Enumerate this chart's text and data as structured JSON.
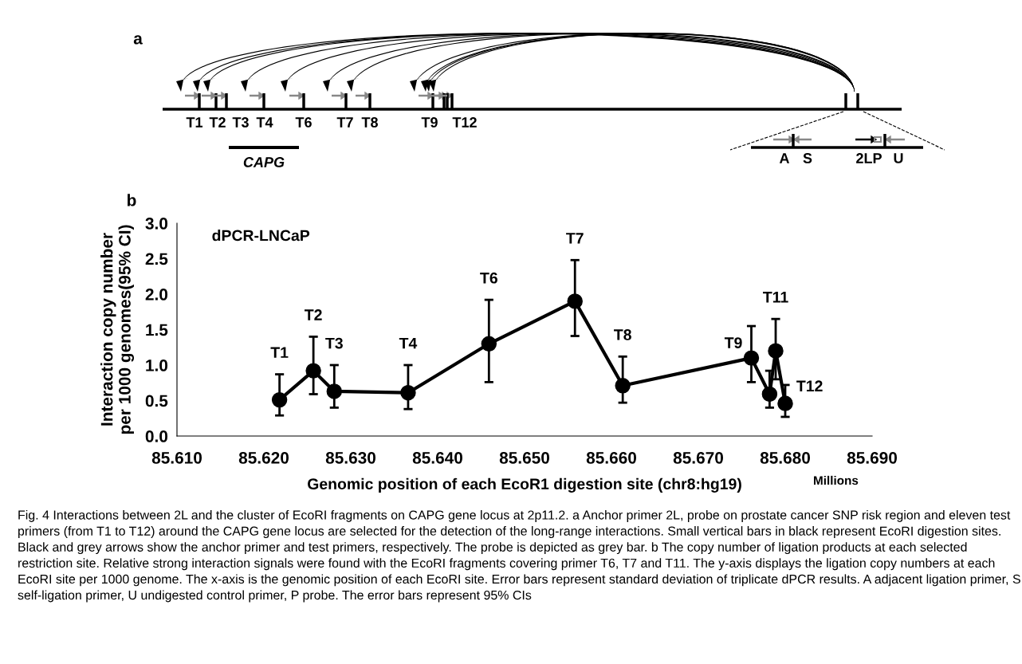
{
  "chart_data": [
    {
      "type": "other",
      "title": "a",
      "annotations": [
        "T1",
        "T2",
        "T3",
        "T4",
        "T6",
        "T7",
        "T8",
        "T9",
        "T12",
        "CAPG",
        "A",
        "S",
        "2LP",
        "U"
      ]
    },
    {
      "type": "line",
      "title": "b",
      "xlabel": "Genomic position of each EcoR1 digestion site (chr8:hg19)",
      "ylabel": "Interaction copy number\nper 1000 genomes(95% CI)",
      "x": [
        85.6218,
        85.6257,
        85.6281,
        85.6366,
        85.6459,
        85.6558,
        85.6613,
        85.6761,
        85.6782,
        85.6789,
        85.68
      ],
      "series": [
        {
          "color": "#000000",
          "values": [
            0.51,
            0.92,
            0.63,
            0.61,
            1.3,
            1.9,
            0.71,
            1.1,
            0.59,
            1.2,
            0.46
          ],
          "errors": [
            [
              0.29,
              0.87
            ],
            [
              0.59,
              1.4
            ],
            [
              0.4,
              1.0
            ],
            [
              0.38,
              1.0
            ],
            [
              0.76,
              1.92
            ],
            [
              1.41,
              2.48
            ],
            [
              0.47,
              1.12
            ],
            [
              0.76,
              1.55
            ],
            [
              0.4,
              0.92
            ],
            [
              0.8,
              1.65
            ],
            [
              0.27,
              0.72
            ]
          ]
        }
      ],
      "xlim": [
        85.61,
        85.69
      ],
      "xticks": [
        {
          "value": 85.61,
          "label": "85.610"
        },
        {
          "value": 85.62,
          "label": "85.620"
        },
        {
          "value": 85.63,
          "label": "85.630"
        },
        {
          "value": 85.64,
          "label": "85.640"
        },
        {
          "value": 85.65,
          "label": "85.650"
        },
        {
          "value": 85.66,
          "label": "85.660"
        },
        {
          "value": 85.67,
          "label": "85.670"
        },
        {
          "value": 85.68,
          "label": "85.680"
        },
        {
          "value": 85.69,
          "label": "85.690"
        }
      ],
      "ylim": [
        0,
        3
      ],
      "yticks": [
        {
          "value": 0,
          "label": "0.0"
        },
        {
          "value": 0.5,
          "label": "0.5"
        },
        {
          "value": 1,
          "label": "1.0"
        },
        {
          "value": 1.5,
          "label": "1.5"
        },
        {
          "value": 2,
          "label": "2.0"
        },
        {
          "value": 2.5,
          "label": "2.5"
        },
        {
          "value": 3,
          "label": "3.0"
        }
      ],
      "grid": false,
      "legend": false,
      "marker": "circle",
      "line_style": "solid",
      "annotations": [
        {
          "text": "T1",
          "x": 85.6218,
          "y": 0.87
        },
        {
          "text": "T2",
          "x": 85.6257,
          "y": 1.4
        },
        {
          "text": "T3",
          "x": 85.6281,
          "y": 1.0
        },
        {
          "text": "T4",
          "x": 85.6366,
          "y": 1.0
        },
        {
          "text": "T6",
          "x": 85.6459,
          "y": 1.92
        },
        {
          "text": "T7",
          "x": 85.6558,
          "y": 2.48
        },
        {
          "text": "T8",
          "x": 85.6613,
          "y": 1.12
        },
        {
          "text": "T9",
          "x": 85.6761,
          "y": 1.1
        },
        {
          "text": "T11",
          "x": 85.6789,
          "y": 1.65
        },
        {
          "text": "T12",
          "x": 85.68,
          "y": 0.46
        },
        "dPCR-LNCaP",
        "Millions",
        "Fig. 4 Interactions between 2L and the cluster of EcoRI fragments on CAPG gene locus at 2p11.2. a Anchor primer 2L, probe on prostate cancer SNP risk region and eleven test primers (from T1 to T12) around the CAPG gene locus are selected for the detection of the long-range interactions. Small vertical bars in black represent EcoRI digestion sites. Black and grey arrows show the anchor primer and test primers, respectively. The probe is depicted as grey bar. b The copy number of ligation products at each selected restriction site. Relative strong interaction signals were found with the EcoRI fragments covering primer T6, T7 and T11. The y-axis displays the ligation copy numbers at each EcoRI site per 1000 genome. The x-axis is the genomic position of each EcoRI site. Error bars represent standard deviation of triplicate dPCR results. A adjacent ligation primer, S self-ligation primer, U undigested control primer, P probe. The error bars represent 95% CIs"
      ]
    }
  ]
}
